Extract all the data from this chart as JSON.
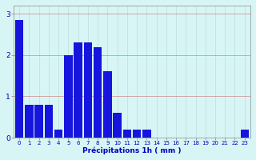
{
  "categories": [
    0,
    1,
    2,
    3,
    4,
    5,
    6,
    7,
    8,
    9,
    10,
    11,
    12,
    13,
    14,
    15,
    16,
    17,
    18,
    19,
    20,
    21,
    22,
    23
  ],
  "values": [
    2.85,
    0.8,
    0.8,
    0.8,
    0.2,
    2.0,
    2.3,
    2.3,
    2.2,
    1.6,
    0.6,
    0.2,
    0.2,
    0.2,
    0.0,
    0.0,
    0.0,
    0.0,
    0.0,
    0.0,
    0.0,
    0.0,
    0.0,
    0.2
  ],
  "bar_color": "#1515dd",
  "background_color": "#d8f5f5",
  "grid_color": "#bbdddd",
  "text_color": "#0000bb",
  "xlabel": "Précipitations 1h ( mm )",
  "ylim": [
    0,
    3.2
  ],
  "yticks": [
    0,
    1,
    2,
    3
  ],
  "bar_width": 0.85,
  "tick_fontsize": 5.0,
  "xlabel_fontsize": 6.5,
  "ylabel_fontsize": 6.5
}
